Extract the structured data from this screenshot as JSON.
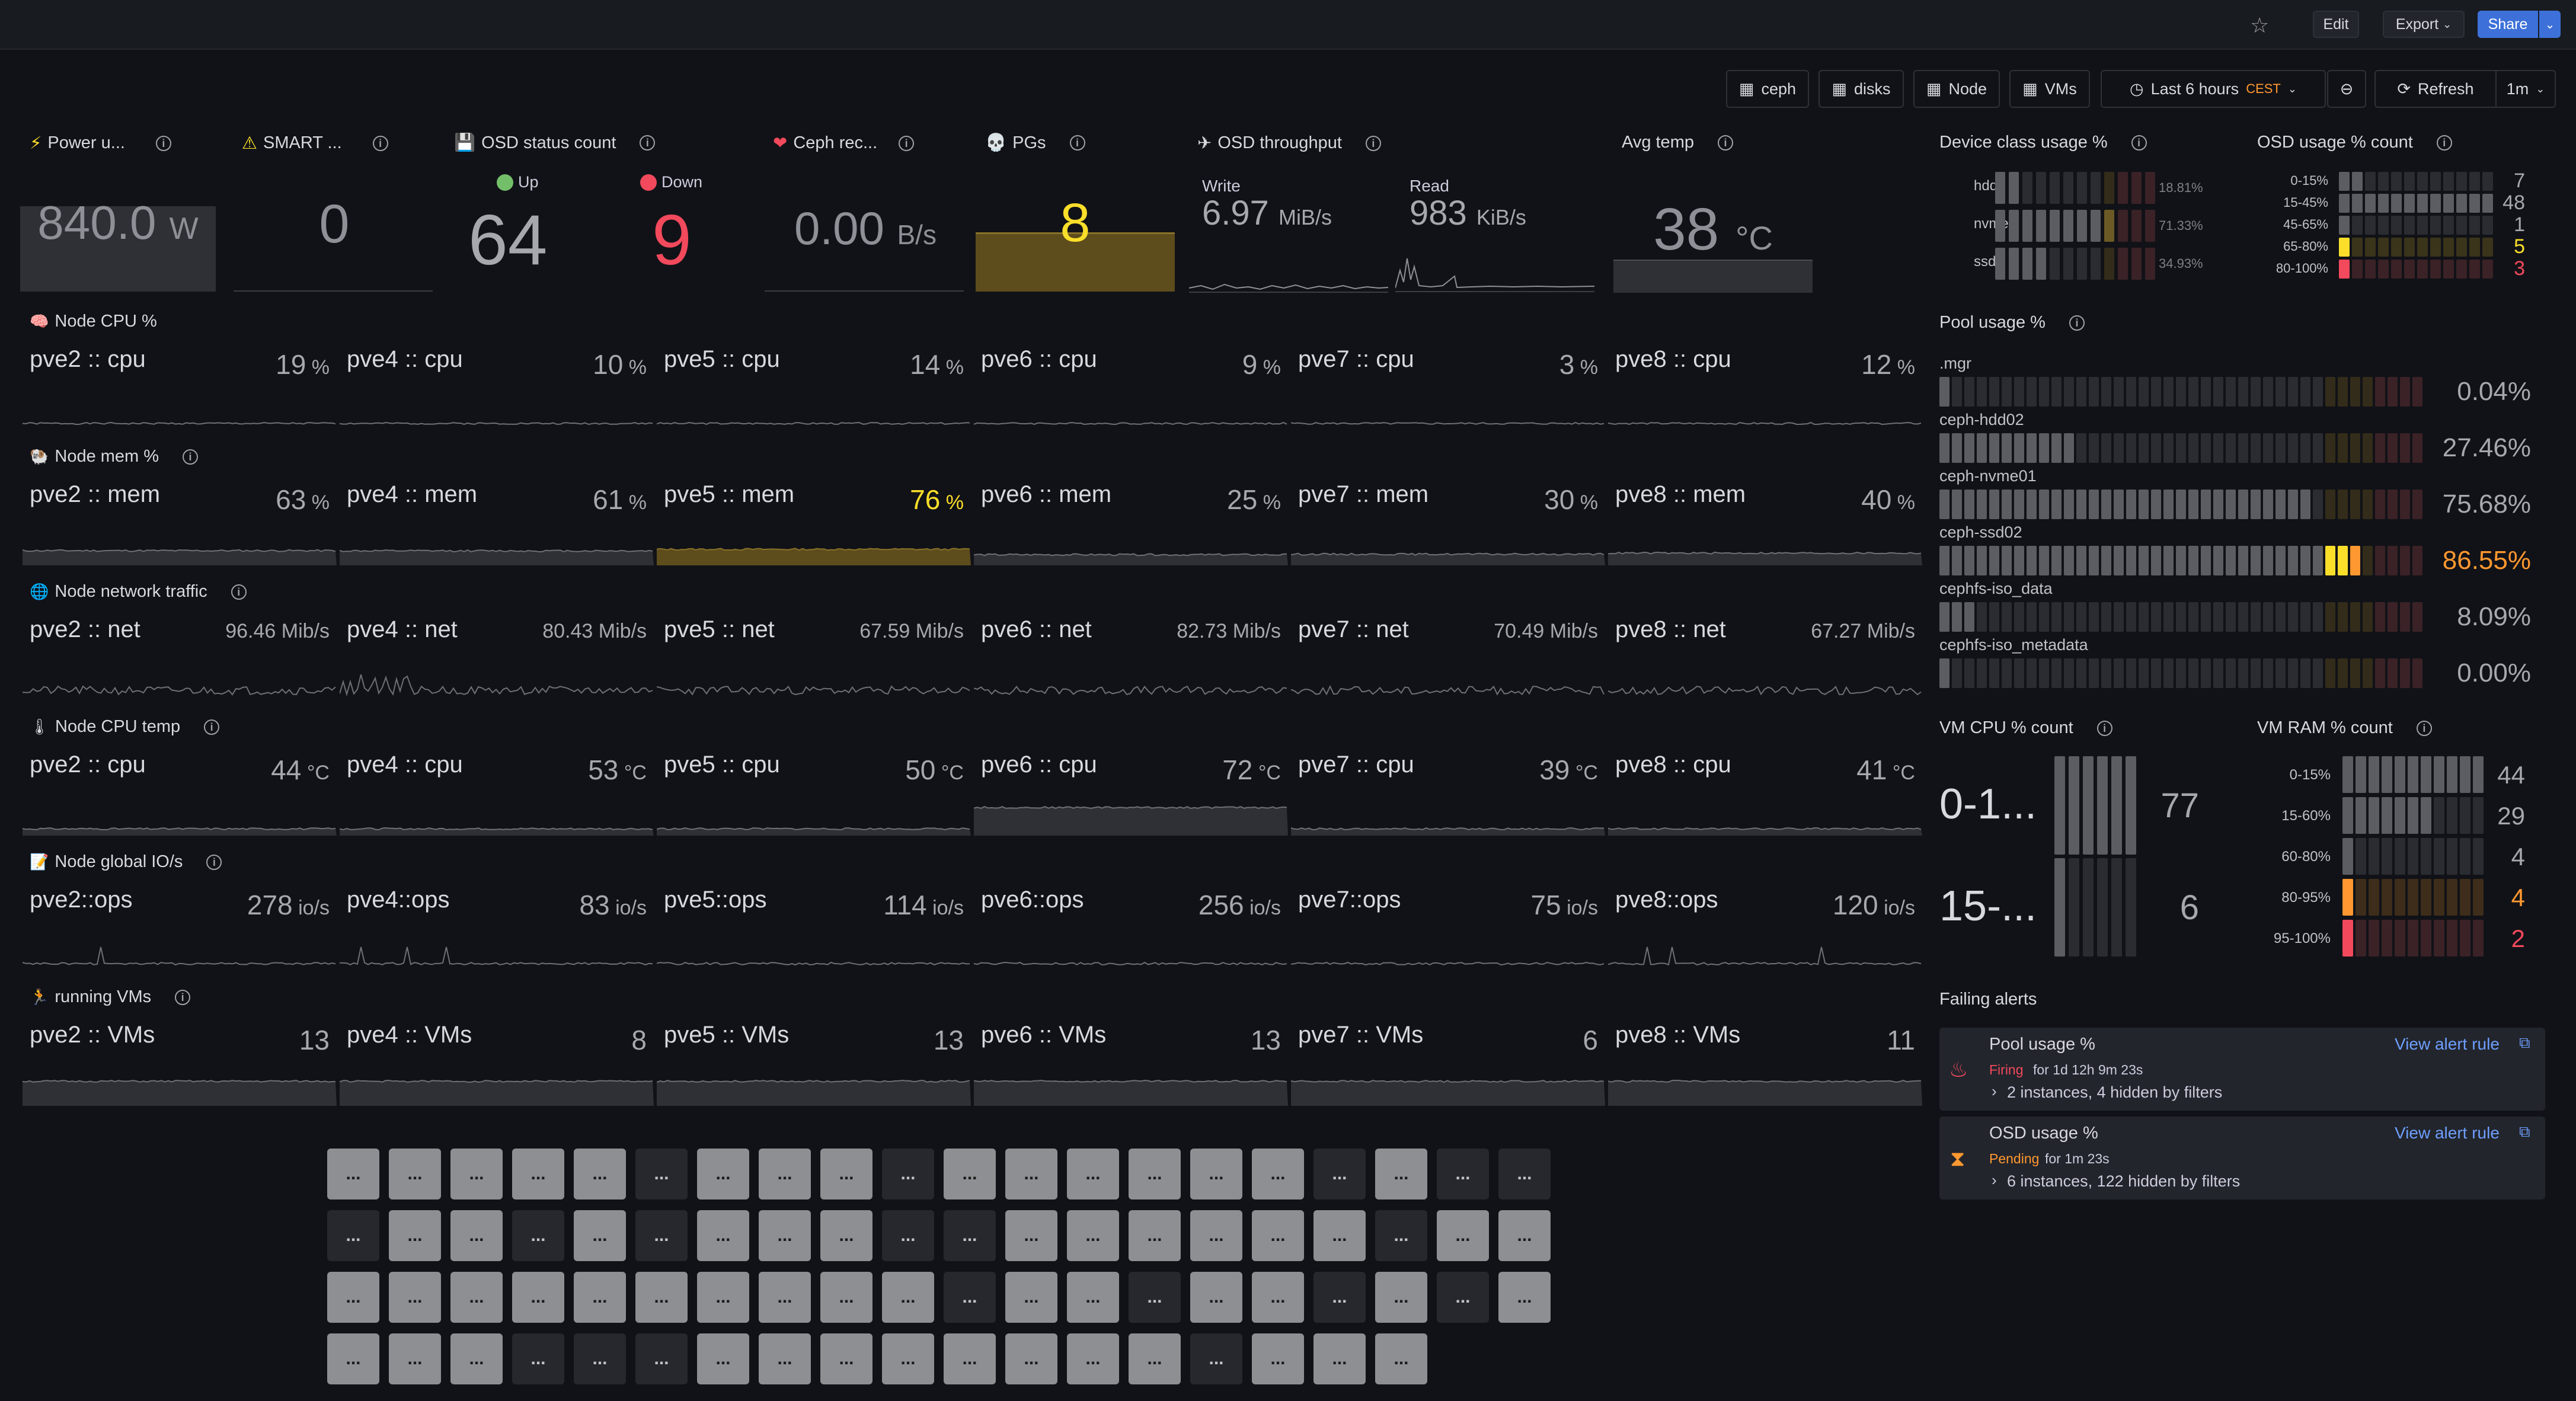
{
  "topbar": {
    "edit": "Edit",
    "export": "Export",
    "share": "Share"
  },
  "toolbar": {
    "ceph": "ceph",
    "disks": "disks",
    "node": "Node",
    "vms": "VMs",
    "time": "Last 6 hours",
    "tz": "CEST",
    "refresh": "Refresh",
    "interval": "1m"
  },
  "stats": {
    "power": {
      "title": "Power u...",
      "value": "840.0",
      "unit": "W"
    },
    "smart": {
      "title": "SMART ...",
      "value": "0"
    },
    "osd": {
      "title": "OSD status count",
      "up_label": "Up",
      "up_value": "64",
      "down_label": "Down",
      "down_value": "9"
    },
    "recovery": {
      "title": "Ceph rec...",
      "value": "0.00",
      "unit": "B/s"
    },
    "pgs": {
      "title": "PGs",
      "value": "8"
    },
    "throughput": {
      "title": "OSD throughput",
      "write_label": "Write",
      "write_value": "6.97",
      "write_unit": "MiB/s",
      "read_label": "Read",
      "read_value": "983",
      "read_unit": "KiB/s"
    },
    "temp": {
      "title": "Avg temp",
      "value": "38",
      "unit": "°C"
    }
  },
  "rows": [
    {
      "title": "Node CPU %",
      "cells": [
        {
          "label": "pve2 :: cpu",
          "value": "19",
          "unit": "%"
        },
        {
          "label": "pve4 :: cpu",
          "value": "10",
          "unit": "%"
        },
        {
          "label": "pve5 :: cpu",
          "value": "14",
          "unit": "%"
        },
        {
          "label": "pve6 :: cpu",
          "value": "9",
          "unit": "%"
        },
        {
          "label": "pve7 :: cpu",
          "value": "3",
          "unit": "%"
        },
        {
          "label": "pve8 :: cpu",
          "value": "12",
          "unit": "%"
        }
      ]
    },
    {
      "title": "Node mem %",
      "cells": [
        {
          "label": "pve2 :: mem",
          "value": "63",
          "unit": "%"
        },
        {
          "label": "pve4 :: mem",
          "value": "61",
          "unit": "%"
        },
        {
          "label": "pve5 :: mem",
          "value": "76",
          "unit": "%"
        },
        {
          "label": "pve6 :: mem",
          "value": "25",
          "unit": "%"
        },
        {
          "label": "pve7 :: mem",
          "value": "30",
          "unit": "%"
        },
        {
          "label": "pve8 :: mem",
          "value": "40",
          "unit": "%"
        }
      ]
    },
    {
      "title": "Node network traffic",
      "cells": [
        {
          "label": "pve2 :: net",
          "value": "96.46 Mib/s"
        },
        {
          "label": "pve4 :: net",
          "value": "80.43 Mib/s"
        },
        {
          "label": "pve5 :: net",
          "value": "67.59 Mib/s"
        },
        {
          "label": "pve6 :: net",
          "value": "82.73 Mib/s"
        },
        {
          "label": "pve7 :: net",
          "value": "70.49 Mib/s"
        },
        {
          "label": "pve8 :: net",
          "value": "67.27 Mib/s"
        }
      ]
    },
    {
      "title": "Node CPU temp",
      "cells": [
        {
          "label": "pve2 :: cpu",
          "value": "44",
          "unit": "°C"
        },
        {
          "label": "pve4 :: cpu",
          "value": "53",
          "unit": "°C"
        },
        {
          "label": "pve5 :: cpu",
          "value": "50",
          "unit": "°C"
        },
        {
          "label": "pve6 :: cpu",
          "value": "72",
          "unit": "°C"
        },
        {
          "label": "pve7 :: cpu",
          "value": "39",
          "unit": "°C"
        },
        {
          "label": "pve8 :: cpu",
          "value": "41",
          "unit": "°C"
        }
      ]
    },
    {
      "title": "Node global IO/s",
      "cells": [
        {
          "label": "pve2::ops",
          "value": "278",
          "unit": "io/s"
        },
        {
          "label": "pve4::ops",
          "value": "83",
          "unit": "io/s"
        },
        {
          "label": "pve5::ops",
          "value": "114",
          "unit": "io/s"
        },
        {
          "label": "pve6::ops",
          "value": "256",
          "unit": "io/s"
        },
        {
          "label": "pve7::ops",
          "value": "75",
          "unit": "io/s"
        },
        {
          "label": "pve8::ops",
          "value": "120",
          "unit": "io/s"
        }
      ]
    },
    {
      "title": "running VMs",
      "cells": [
        {
          "label": "pve2 :: VMs",
          "value": "13"
        },
        {
          "label": "pve4 :: VMs",
          "value": "8"
        },
        {
          "label": "pve5 :: VMs",
          "value": "13"
        },
        {
          "label": "pve6 :: VMs",
          "value": "13"
        },
        {
          "label": "pve7 :: VMs",
          "value": "6"
        },
        {
          "label": "pve8 :: VMs",
          "value": "11"
        }
      ]
    }
  ],
  "device_class": {
    "title": "Device class usage %",
    "items": [
      {
        "label": "hdd",
        "value": "18.81%",
        "pct": 18.81
      },
      {
        "label": "nvme",
        "value": "71.33%",
        "pct": 71.33
      },
      {
        "label": "ssd",
        "value": "34.93%",
        "pct": 34.93
      }
    ]
  },
  "osd_usage": {
    "title": "OSD usage % count",
    "items": [
      {
        "label": "0-15%",
        "value": "7",
        "fill": 0.14
      },
      {
        "label": "15-45%",
        "value": "48",
        "fill": 1.0
      },
      {
        "label": "45-65%",
        "value": "1",
        "fill": 0.05
      },
      {
        "label": "65-80%",
        "value": "5",
        "fill": 0.11
      },
      {
        "label": "80-100%",
        "value": "3",
        "fill": 0.07
      }
    ]
  },
  "pool_usage": {
    "title": "Pool usage %",
    "items": [
      {
        "label": ".mgr",
        "value": "0.04%",
        "pct": 0.04
      },
      {
        "label": "ceph-hdd02",
        "value": "27.46%",
        "pct": 27.46
      },
      {
        "label": "ceph-nvme01",
        "value": "75.68%",
        "pct": 75.68
      },
      {
        "label": "ceph-ssd02",
        "value": "86.55%",
        "pct": 86.55
      },
      {
        "label": "cephfs-iso_data",
        "value": "8.09%",
        "pct": 8.09
      },
      {
        "label": "cephfs-iso_metadata",
        "value": "0.00%",
        "pct": 0
      }
    ]
  },
  "vm_cpu": {
    "title": "VM CPU % count",
    "items": [
      {
        "label": "0-1...",
        "value": "77"
      },
      {
        "label": "15-...",
        "value": "6"
      }
    ]
  },
  "vm_ram": {
    "title": "VM RAM % count",
    "items": [
      {
        "label": "0-15%",
        "value": "44",
        "fill": 1.0
      },
      {
        "label": "15-60%",
        "value": "29",
        "fill": 0.66
      },
      {
        "label": "60-80%",
        "value": "4",
        "fill": 0.09
      },
      {
        "label": "80-95%",
        "value": "4",
        "fill": 0.09
      },
      {
        "label": "95-100%",
        "value": "2",
        "fill": 0.05
      }
    ]
  },
  "alerts": {
    "title": "Failing alerts",
    "items": [
      {
        "name": "Pool usage %",
        "state": "Firing",
        "for": "for 1d 12h 9m 23s",
        "instances": "2 instances, 4 hidden by filters",
        "link": "View alert rule"
      },
      {
        "name": "OSD usage %",
        "state": "Pending",
        "for": "for 1m 23s",
        "instances": "6 instances, 122 hidden by filters",
        "link": "View alert rule"
      }
    ]
  },
  "vm_grid": {
    "label": "...",
    "rows": [
      "LLLLLDLLLDLLLLLLDLDD",
      "DLLDLDLLLDDLLLLLLDLL",
      "LLLLLLLLLLDLLDLLDLDL",
      "LLLDDDLLLLLLLLDLLL"
    ]
  },
  "colors": {
    "green": "#73bf69",
    "red": "#f2495c",
    "orange": "#ff9830",
    "yellow": "#fade2a",
    "blue": "#3d71d9",
    "dim": "#2b2c31"
  }
}
